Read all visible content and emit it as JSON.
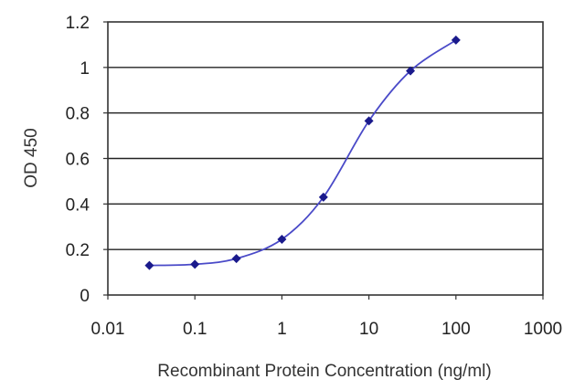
{
  "chart_data": {
    "type": "scatter",
    "xlabel": "Recombinant Protein Concentration (ng/ml)",
    "ylabel": "OD 450",
    "xscale": "log",
    "xlim": [
      0.01,
      1000
    ],
    "ylim": [
      0,
      1.2
    ],
    "x_ticks": [
      0.01,
      0.1,
      1,
      10,
      100,
      1000
    ],
    "x_tick_labels": [
      "0.01",
      "0.1",
      "1",
      "10",
      "100",
      "1000"
    ],
    "y_ticks": [
      0,
      0.2,
      0.4,
      0.6,
      0.8,
      1,
      1.2
    ],
    "y_tick_labels": [
      "0",
      "0.2",
      "0.4",
      "0.6",
      "0.8",
      "1",
      "1.2"
    ],
    "grid": "horizontal",
    "series": [
      {
        "x": [
          0.03,
          0.1,
          0.3,
          1,
          3,
          10,
          30,
          100
        ],
        "y": [
          0.13,
          0.135,
          0.16,
          0.245,
          0.43,
          0.765,
          0.985,
          1.12
        ],
        "fit_curve": true
      }
    ],
    "colors": {
      "marker": "#1a1a8c",
      "curve": "#4a4ac8"
    }
  }
}
